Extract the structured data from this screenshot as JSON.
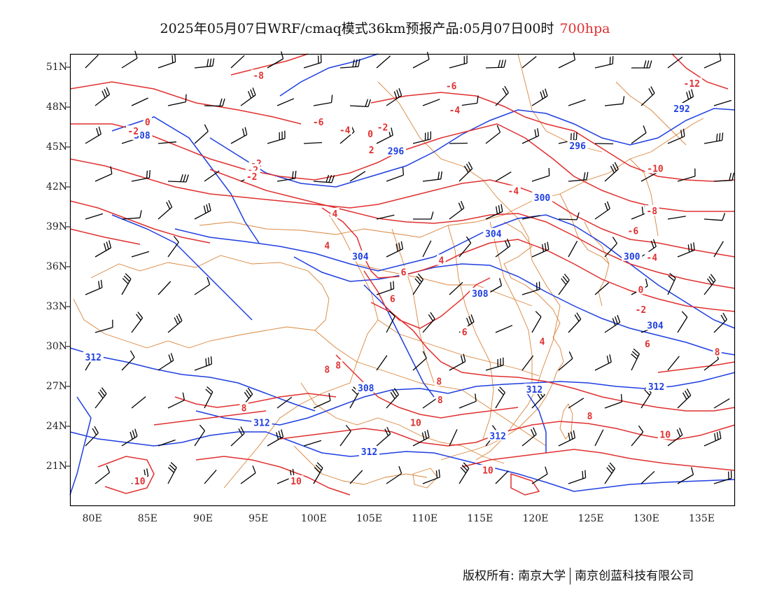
{
  "title": {
    "main": "2025年05月07日WRF/cmaq模式36km预报产品:05月07日00时",
    "level": "700hpa"
  },
  "colors": {
    "height": "#1f3fe0",
    "temperature": "#e03030",
    "boundary": "#d9853b",
    "wind": "#000000",
    "level_text": "#e03030"
  },
  "chart_data": {
    "type": "map",
    "projection": "lat-lon",
    "xlim": [
      78,
      138
    ],
    "ylim": [
      18,
      52
    ],
    "x_ticks": [
      "80E",
      "85E",
      "90E",
      "95E",
      "100E",
      "105E",
      "110E",
      "115E",
      "120E",
      "125E",
      "130E",
      "135E"
    ],
    "x_tick_values": [
      80,
      85,
      90,
      95,
      100,
      105,
      110,
      115,
      120,
      125,
      130,
      135
    ],
    "y_ticks": [
      "51N",
      "48N",
      "45N",
      "42N",
      "39N",
      "36N",
      "33N",
      "30N",
      "27N",
      "24N",
      "21N"
    ],
    "y_tick_values": [
      51,
      48,
      45,
      42,
      39,
      36,
      33,
      30,
      27,
      24,
      21
    ],
    "geopotential_height_labels": [
      {
        "label": "308",
        "lon": 84.5,
        "lat": 45.9
      },
      {
        "label": "296",
        "lon": 107.4,
        "lat": 44.7
      },
      {
        "label": "296",
        "lon": 123.8,
        "lat": 45.1
      },
      {
        "label": "292",
        "lon": 133.2,
        "lat": 47.9
      },
      {
        "label": "300",
        "lon": 120.6,
        "lat": 41.2
      },
      {
        "label": "304",
        "lon": 116.2,
        "lat": 38.5
      },
      {
        "label": "304",
        "lon": 104.2,
        "lat": 36.8
      },
      {
        "label": "300",
        "lon": 128.7,
        "lat": 36.8
      },
      {
        "label": "308",
        "lon": 115.0,
        "lat": 34.0
      },
      {
        "label": "304",
        "lon": 130.8,
        "lat": 31.6
      },
      {
        "label": "312",
        "lon": 80.1,
        "lat": 29.2
      },
      {
        "label": "308",
        "lon": 104.7,
        "lat": 26.9
      },
      {
        "label": "312",
        "lon": 119.9,
        "lat": 26.8
      },
      {
        "label": "312",
        "lon": 130.9,
        "lat": 27.0
      },
      {
        "label": "312",
        "lon": 95.3,
        "lat": 24.3
      },
      {
        "label": "312",
        "lon": 105.0,
        "lat": 22.1
      },
      {
        "label": "312",
        "lon": 116.6,
        "lat": 23.3
      }
    ],
    "temperature_labels": [
      {
        "label": "-8",
        "lon": 95.0,
        "lat": 50.4
      },
      {
        "label": "-6",
        "lon": 112.4,
        "lat": 49.6
      },
      {
        "label": "-12",
        "lon": 134.1,
        "lat": 49.8
      },
      {
        "label": "-4",
        "lon": 112.7,
        "lat": 47.8
      },
      {
        "label": "-6",
        "lon": 100.4,
        "lat": 46.9
      },
      {
        "label": "-4",
        "lon": 102.8,
        "lat": 46.3
      },
      {
        "label": "-2",
        "lon": 106.2,
        "lat": 46.5
      },
      {
        "label": "0",
        "lon": 105.1,
        "lat": 46.0
      },
      {
        "label": "0",
        "lon": 85.0,
        "lat": 46.9
      },
      {
        "label": "-2",
        "lon": 83.7,
        "lat": 46.2
      },
      {
        "label": "2",
        "lon": 105.2,
        "lat": 44.8
      },
      {
        "label": "-2",
        "lon": 94.8,
        "lat": 43.8
      },
      {
        "label": "-2",
        "lon": 94.5,
        "lat": 43.3
      },
      {
        "label": "-2",
        "lon": 94.4,
        "lat": 42.8
      },
      {
        "label": "-10",
        "lon": 130.8,
        "lat": 43.4
      },
      {
        "label": "-4",
        "lon": 118.0,
        "lat": 41.7
      },
      {
        "label": "-8",
        "lon": 130.5,
        "lat": 40.2
      },
      {
        "label": "4",
        "lon": 101.9,
        "lat": 40.0
      },
      {
        "label": "-6",
        "lon": 128.8,
        "lat": 38.7
      },
      {
        "label": "4",
        "lon": 101.2,
        "lat": 37.6
      },
      {
        "label": "4",
        "lon": 111.5,
        "lat": 36.5
      },
      {
        "label": "-4",
        "lon": 130.5,
        "lat": 36.7
      },
      {
        "label": "6",
        "lon": 108.1,
        "lat": 35.6
      },
      {
        "label": "6",
        "lon": 107.1,
        "lat": 33.6
      },
      {
        "label": "0",
        "lon": 129.5,
        "lat": 34.3
      },
      {
        "label": "-2",
        "lon": 129.5,
        "lat": 32.8
      },
      {
        "label": "6",
        "lon": 113.6,
        "lat": 31.1
      },
      {
        "label": "4",
        "lon": 120.6,
        "lat": 30.4
      },
      {
        "label": "6",
        "lon": 130.1,
        "lat": 30.2
      },
      {
        "label": "8",
        "lon": 136.4,
        "lat": 29.6
      },
      {
        "label": "8",
        "lon": 102.2,
        "lat": 28.6
      },
      {
        "label": "8",
        "lon": 101.2,
        "lat": 28.3
      },
      {
        "label": "8",
        "lon": 111.3,
        "lat": 27.4
      },
      {
        "label": "8",
        "lon": 111.4,
        "lat": 26.0
      },
      {
        "label": "8",
        "lon": 93.7,
        "lat": 25.4
      },
      {
        "label": "8",
        "lon": 124.9,
        "lat": 24.8
      },
      {
        "label": "10",
        "lon": 109.2,
        "lat": 24.3
      },
      {
        "label": "10",
        "lon": 131.7,
        "lat": 23.4
      },
      {
        "label": "10",
        "lon": 84.3,
        "lat": 19.9
      },
      {
        "label": "10",
        "lon": 98.4,
        "lat": 19.9
      },
      {
        "label": "10",
        "lon": 115.7,
        "lat": 20.7
      }
    ]
  },
  "footer": {
    "copyright": "版权所有: 南京大学",
    "company": "南京创蓝科技有限公司"
  }
}
